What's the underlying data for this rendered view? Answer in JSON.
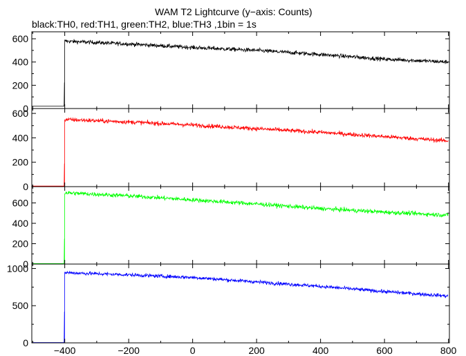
{
  "title": "WAM T2 Lightcurve (y−axis: Counts)",
  "subtitle": "black:TH0, red:TH1, green:TH2, blue:TH3 ,1bin = 1s",
  "chart_data": {
    "type": "line",
    "title": "WAM T2 Lightcurve (y−axis: Counts)",
    "subtitle": "black:TH0, red:TH1, green:TH2, blue:TH3 ,1bin = 1s",
    "xlabel": "",
    "ylabel": "",
    "xlim": [
      -503,
      803
    ],
    "x_ticks": [
      -400,
      -200,
      0,
      200,
      400,
      600,
      800
    ],
    "x_tick_labels": [
      "−400",
      "−200",
      "0",
      "200",
      "400",
      "600",
      "800"
    ],
    "onset_x": -400,
    "grid": false,
    "panels": [
      {
        "series": "TH0",
        "color": "#000000",
        "ylim": [
          0,
          660
        ],
        "y_ticks": [
          0,
          200,
          400,
          600
        ],
        "y_tick_labels": [
          "0",
          "200",
          "400",
          "600"
        ],
        "pre_level": 20,
        "spike_peak": 225,
        "trend": [
          [
            -400,
            580
          ],
          [
            -200,
            555
          ],
          [
            0,
            525
          ],
          [
            200,
            500
          ],
          [
            400,
            465
          ],
          [
            600,
            425
          ],
          [
            800,
            400
          ]
        ],
        "noise_amplitude": 25
      },
      {
        "series": "TH1",
        "color": "#ff0000",
        "ylim": [
          0,
          640
        ],
        "y_ticks": [
          0,
          200,
          400,
          600
        ],
        "y_tick_labels": [
          "0",
          "200",
          "400",
          "600"
        ],
        "pre_level": 5,
        "spike_peak": 190,
        "trend": [
          [
            -400,
            550
          ],
          [
            -200,
            530
          ],
          [
            0,
            505
          ],
          [
            200,
            475
          ],
          [
            400,
            445
          ],
          [
            600,
            410
          ],
          [
            800,
            375
          ]
        ],
        "noise_amplitude": 25
      },
      {
        "series": "TH2",
        "color": "#00ff00",
        "ylim": [
          0,
          760
        ],
        "y_ticks": [
          0,
          200,
          400,
          600
        ],
        "y_tick_labels": [
          "0",
          "200",
          "400",
          "600"
        ],
        "pre_level": 5,
        "spike_peak": 250,
        "trend": [
          [
            -400,
            700
          ],
          [
            -200,
            670
          ],
          [
            0,
            630
          ],
          [
            200,
            590
          ],
          [
            400,
            545
          ],
          [
            600,
            510
          ],
          [
            800,
            480
          ]
        ],
        "noise_amplitude": 30
      },
      {
        "series": "TH3",
        "color": "#0000ff",
        "ylim": [
          0,
          1060
        ],
        "y_ticks": [
          0,
          500,
          1000
        ],
        "y_tick_labels": [
          "0",
          "500",
          "1000"
        ],
        "pre_level": 5,
        "spike_peak": 420,
        "trend": [
          [
            -400,
            945
          ],
          [
            -200,
            915
          ],
          [
            0,
            880
          ],
          [
            200,
            820
          ],
          [
            400,
            760
          ],
          [
            600,
            690
          ],
          [
            800,
            630
          ]
        ],
        "noise_amplitude": 35
      }
    ]
  }
}
